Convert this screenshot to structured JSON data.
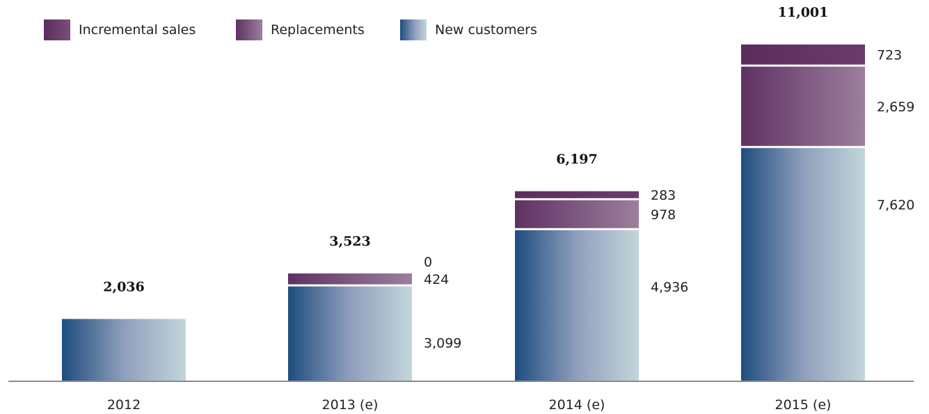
{
  "legend": [
    {
      "label": "Incremental sales",
      "color_key": "incremental"
    },
    {
      "label": "Replacements",
      "color_key": "replacements"
    },
    {
      "label": "New customers",
      "color_key": "new_customers"
    }
  ],
  "colors": {
    "incremental": "#5a2d5c",
    "replacements_from": "#5f3163",
    "replacements_to": "#9c7f9d",
    "new_customers_from": "#1e4d7e",
    "new_customers_mid": "#8f9fbd",
    "new_customers_to": "#c3d6da",
    "axis": "#8a8a8a"
  },
  "chart_data": {
    "type": "bar",
    "stacked": true,
    "categories": [
      "2012",
      "2013 (e)",
      "2014 (e)",
      "2015 (e)"
    ],
    "series": [
      {
        "name": "New customers",
        "values": [
          2036,
          3099,
          4936,
          7620
        ],
        "value_labels": [
          "",
          "3,099",
          "4,936",
          "7,620"
        ]
      },
      {
        "name": "Replacements",
        "values": [
          0,
          424,
          978,
          2659
        ],
        "value_labels": [
          "",
          "424",
          "978",
          "2,659"
        ]
      },
      {
        "name": "Incremental sales",
        "values": [
          0,
          0,
          283,
          723
        ],
        "value_labels": [
          "",
          "0",
          "283",
          "723"
        ]
      }
    ],
    "totals": [
      2036,
      3523,
      6197,
      11001
    ],
    "total_labels": [
      "2,036",
      "3,523",
      "6,197",
      "11,001"
    ],
    "ylim": [
      0,
      11001
    ],
    "grid": false,
    "legend_position": "top-left"
  }
}
